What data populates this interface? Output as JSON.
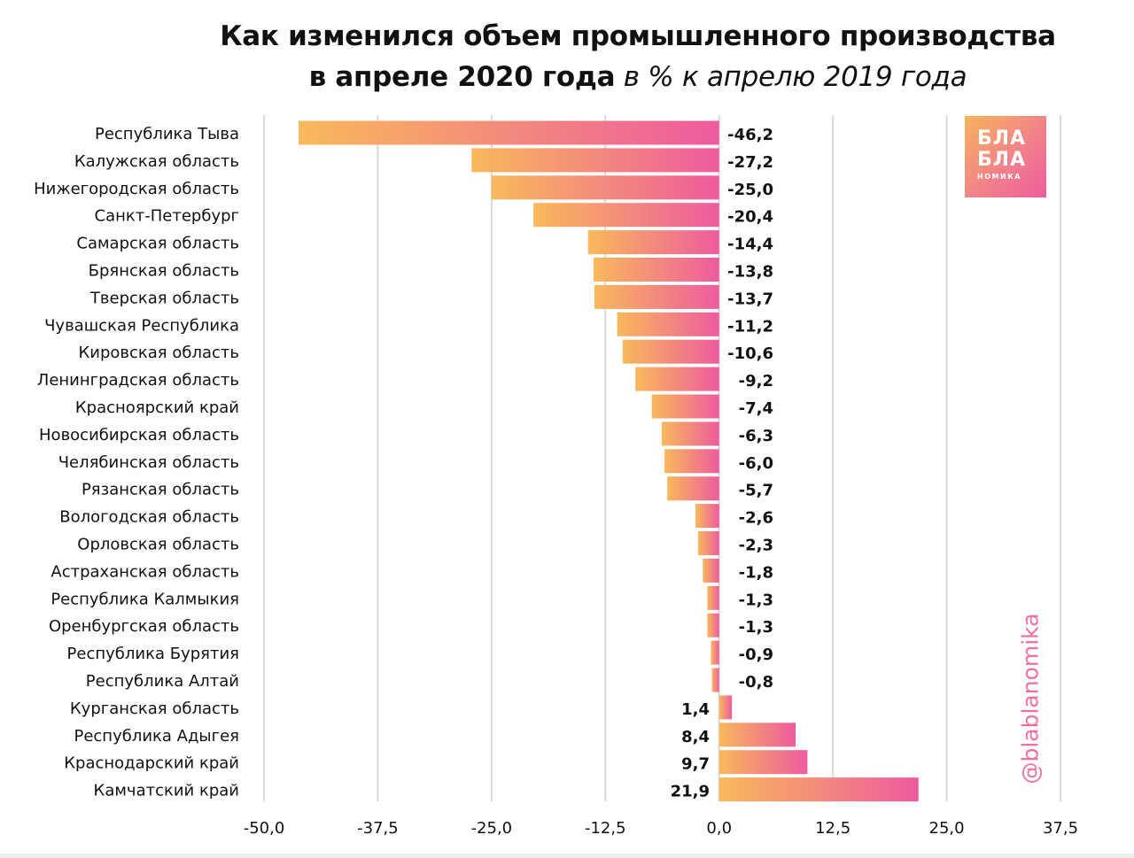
{
  "title": {
    "line1": "Как изменился  объем промышленного производства",
    "line2_bold": "в апреле 2020 года",
    "line2_italic": " в % к апрелю 2019 года"
  },
  "logo": {
    "line1": "БЛА",
    "line2": "БЛА",
    "line3": "НОМИКА"
  },
  "handle": "@blablanomika",
  "colors": {
    "bar_start": "#f8b95b",
    "bar_end": "#ee5b9e",
    "grid": "#d8d8d8",
    "handle": "#ef6fa4"
  },
  "chart_data": {
    "type": "bar",
    "orientation": "horizontal",
    "categories": [
      "Республика Тыва",
      "Калужская область",
      "Нижегородская область",
      "Санкт-Петербург",
      "Самарская область",
      "Брянская область",
      "Тверская область",
      "Чувашская Республика",
      "Кировская область",
      "Ленинградская область",
      "Красноярский край",
      "Новосибирская область",
      "Челябинская область",
      "Рязанская область",
      "Вологодская область",
      "Орловская область",
      "Астраханская область",
      "Республика Калмыкия",
      "Оренбургская область",
      "Республика Бурятия",
      "Республика Алтай",
      "Курганская область",
      "Республика Адыгея",
      "Краснодарский край",
      "Камчатский край"
    ],
    "values": [
      -46.2,
      -27.2,
      -25.0,
      -20.4,
      -14.4,
      -13.8,
      -13.7,
      -11.2,
      -10.6,
      -9.2,
      -7.4,
      -6.3,
      -6.0,
      -5.7,
      -2.6,
      -2.3,
      -1.8,
      -1.3,
      -1.3,
      -0.9,
      -0.8,
      1.4,
      8.4,
      9.7,
      21.9
    ],
    "value_labels": [
      "-46,2",
      "-27,2",
      "-25,0",
      "-20,4",
      "-14,4",
      "-13,8",
      "-13,7",
      "-11,2",
      "-10,6",
      "-9,2",
      "-7,4",
      "-6,3",
      "-6,0",
      "-5,7",
      "-2,6",
      "-2,3",
      "-1,8",
      "-1,3",
      "-1,3",
      "-0,9",
      "-0,8",
      "1,4",
      "8,4",
      "9,7",
      "21,9"
    ],
    "xlim": [
      -50,
      37.5
    ],
    "xticks": [
      -50,
      -37.5,
      -25,
      -12.5,
      0,
      12.5,
      25,
      37.5
    ],
    "xtick_labels": [
      "-50,0",
      "-37,5",
      "-25,0",
      "-12,5",
      "0,0",
      "12,5",
      "25,0",
      "37,5"
    ],
    "grid": true,
    "xlabel": "",
    "ylabel": ""
  }
}
